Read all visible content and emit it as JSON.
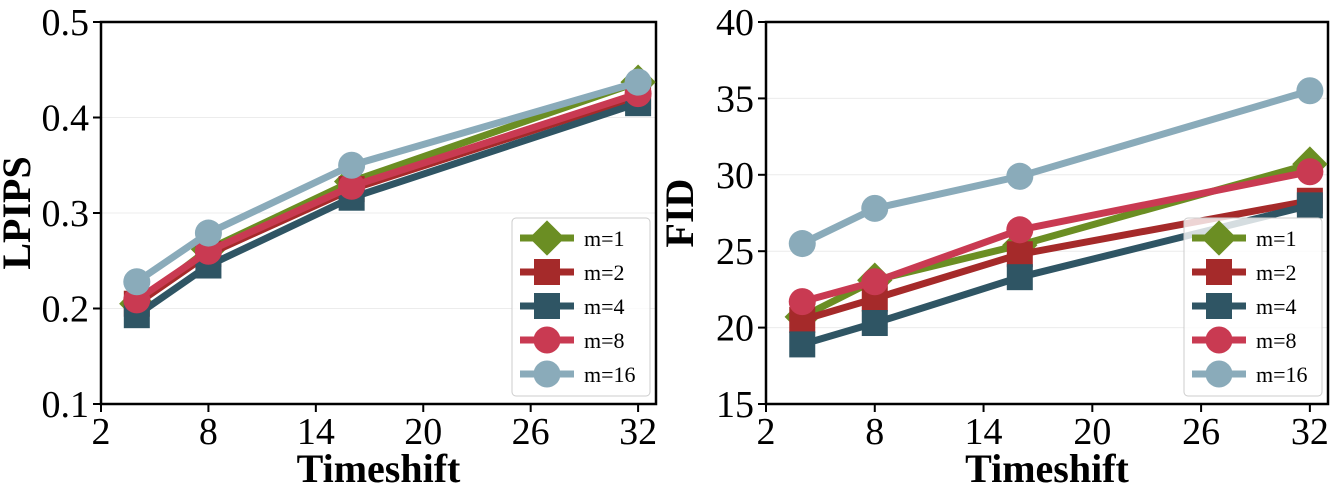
{
  "chart_data": [
    {
      "type": "line",
      "title": "",
      "xlabel": "Timeshift",
      "ylabel": "LPIPS",
      "xlim": [
        2,
        33
      ],
      "ylim": [
        0.1,
        0.5
      ],
      "xticks": [
        2,
        8,
        14,
        20,
        26,
        32
      ],
      "xtick_labels": [
        "2",
        "8",
        "14",
        "20",
        "26",
        "32"
      ],
      "yticks": [
        0.1,
        0.2,
        0.3,
        0.4,
        0.5
      ],
      "ytick_labels": [
        "0.1",
        "0.2",
        "0.3",
        "0.4",
        "0.5"
      ],
      "grid": true,
      "legend_position": "lower-right",
      "x": [
        4,
        8,
        16,
        32
      ],
      "series": [
        {
          "name": "m=1",
          "label": "m=1",
          "marker": "diamond",
          "color": "#6b8e23",
          "values": [
            0.205,
            0.262,
            0.333,
            0.437
          ]
        },
        {
          "name": "m=2",
          "label": "m=2",
          "marker": "square",
          "color": "#a52a2a",
          "values": [
            0.205,
            0.257,
            0.325,
            0.422
          ]
        },
        {
          "name": "m=4",
          "label": "m=4",
          "marker": "square",
          "color": "#2f5564",
          "values": [
            0.193,
            0.245,
            0.316,
            0.415
          ]
        },
        {
          "name": "m=8",
          "label": "m=8",
          "marker": "circle",
          "color": "#c93a52",
          "values": [
            0.209,
            0.26,
            0.328,
            0.425
          ]
        },
        {
          "name": "m=16",
          "label": "m=16",
          "marker": "circle",
          "color": "#8aabba",
          "values": [
            0.228,
            0.279,
            0.35,
            0.437
          ]
        }
      ]
    },
    {
      "type": "line",
      "title": "",
      "xlabel": "Timeshift",
      "ylabel": "FID",
      "xlim": [
        2,
        33
      ],
      "ylim": [
        15,
        40
      ],
      "xticks": [
        2,
        8,
        14,
        20,
        26,
        32
      ],
      "xtick_labels": [
        "2",
        "8",
        "14",
        "20",
        "26",
        "32"
      ],
      "yticks": [
        15,
        20,
        25,
        30,
        35,
        40
      ],
      "ytick_labels": [
        "15",
        "20",
        "25",
        "30",
        "35",
        "40"
      ],
      "grid": true,
      "legend_position": "lower-right",
      "x": [
        4,
        8,
        16,
        32
      ],
      "series": [
        {
          "name": "m=1",
          "label": "m=1",
          "marker": "diamond",
          "color": "#6b8e23",
          "values": [
            20.7,
            23.1,
            25.4,
            30.7
          ]
        },
        {
          "name": "m=2",
          "label": "m=2",
          "marker": "square",
          "color": "#a52a2a",
          "values": [
            20.5,
            21.9,
            24.8,
            28.3
          ]
        },
        {
          "name": "m=4",
          "label": "m=4",
          "marker": "square",
          "color": "#2f5564",
          "values": [
            18.9,
            20.3,
            23.3,
            28.0
          ]
        },
        {
          "name": "m=8",
          "label": "m=8",
          "marker": "circle",
          "color": "#c93a52",
          "values": [
            21.7,
            23.0,
            26.4,
            30.2
          ]
        },
        {
          "name": "m=16",
          "label": "m=16",
          "marker": "circle",
          "color": "#8aabba",
          "values": [
            25.5,
            27.8,
            29.9,
            35.5
          ]
        }
      ]
    }
  ]
}
